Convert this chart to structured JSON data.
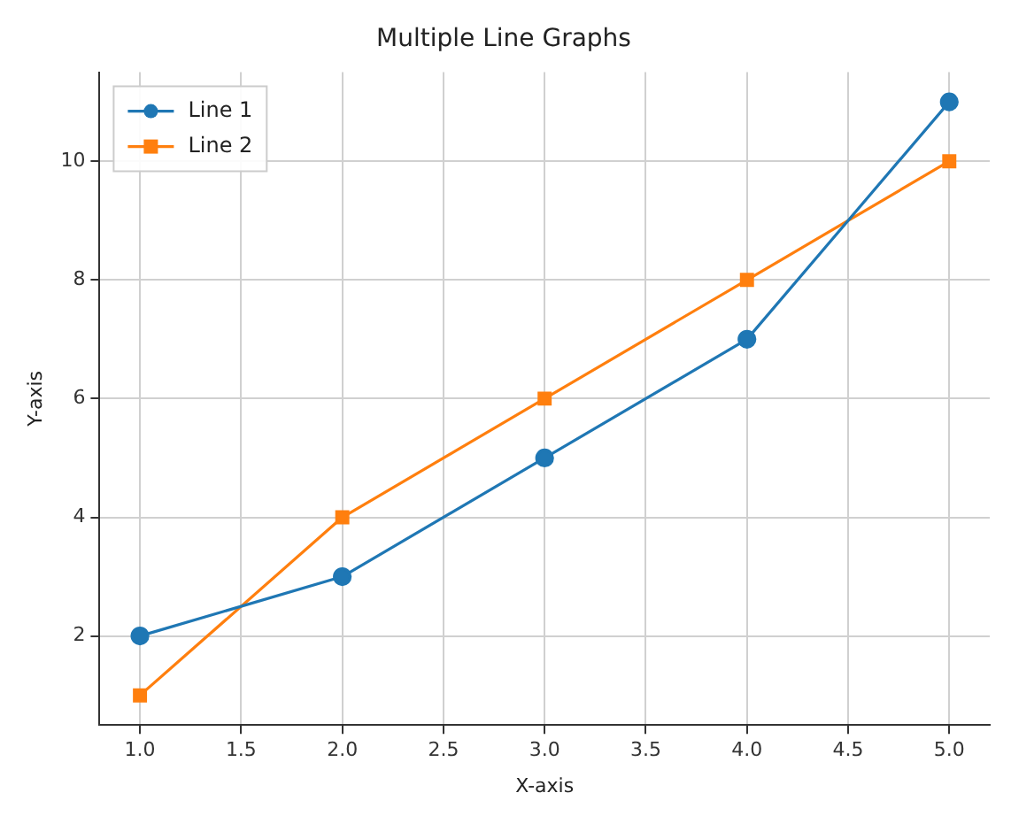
{
  "chart_data": {
    "type": "line",
    "title": "Multiple Line Graphs",
    "xlabel": "X-axis",
    "ylabel": "Y-axis",
    "x": [
      1,
      2,
      3,
      4,
      5
    ],
    "series": [
      {
        "name": "Line 1",
        "color": "#1f77b4",
        "values": [
          2,
          3,
          5,
          7,
          11
        ],
        "marker": "circle"
      },
      {
        "name": "Line 2",
        "color": "#ff7f0e",
        "values": [
          1,
          4,
          6,
          8,
          10
        ],
        "marker": "square"
      }
    ],
    "xlim": [
      0.8,
      5.2
    ],
    "xticks": [
      {
        "value": 1,
        "label": "1.0"
      },
      {
        "value": 1.5,
        "label": "1.5"
      },
      {
        "value": 2,
        "label": "2.0"
      },
      {
        "value": 2.5,
        "label": "2.5"
      },
      {
        "value": 3,
        "label": "3.0"
      },
      {
        "value": 3.5,
        "label": "3.5"
      },
      {
        "value": 4,
        "label": "4.0"
      },
      {
        "value": 4.5,
        "label": "4.5"
      },
      {
        "value": 5,
        "label": "5.0"
      }
    ],
    "ylim": [
      0.5,
      11.5
    ],
    "yticks": [
      2,
      4,
      6,
      8,
      10
    ],
    "grid": true,
    "legend": "top left",
    "line_style": "solid"
  }
}
